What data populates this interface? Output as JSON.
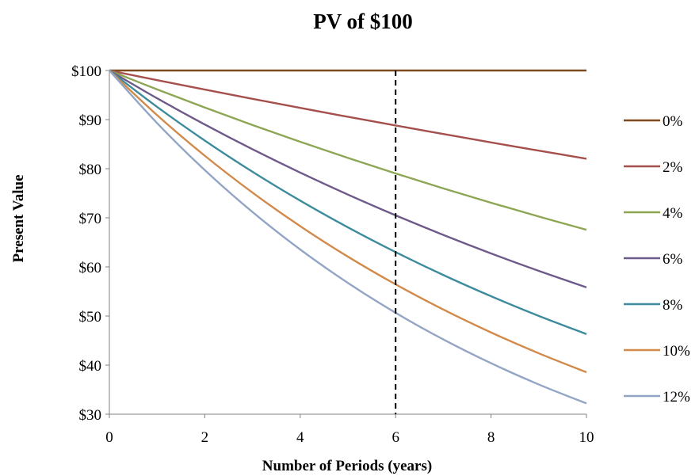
{
  "chart_data": {
    "type": "line",
    "title": "PV of $100",
    "xlabel": "Number of Periods (years)",
    "ylabel": "Present Value",
    "xlim": [
      0,
      10
    ],
    "ylim": [
      30,
      100
    ],
    "x_ticks": [
      0,
      2,
      4,
      6,
      8,
      10
    ],
    "x_tick_labels": [
      "0",
      "2",
      "4",
      "6",
      "8",
      "10"
    ],
    "y_ticks": [
      30,
      40,
      50,
      60,
      70,
      80,
      90,
      100
    ],
    "y_tick_labels": [
      "$30",
      "$40",
      "$50",
      "$60",
      "$70",
      "$80",
      "$90",
      "$100"
    ],
    "x": [
      0,
      1,
      2,
      3,
      4,
      5,
      6,
      7,
      8,
      9,
      10
    ],
    "grid": false,
    "legend_position": "right",
    "reference_line": {
      "orientation": "vertical",
      "x": 6,
      "style": "dashed",
      "color": "#000000"
    },
    "series": [
      {
        "name": "0%",
        "color": "#7f4a1e",
        "values": [
          100,
          100,
          100,
          100,
          100,
          100,
          100,
          100,
          100,
          100,
          100
        ]
      },
      {
        "name": "2%",
        "color": "#a5504d",
        "values": [
          100,
          98.04,
          96.12,
          94.23,
          92.38,
          90.57,
          88.8,
          87.06,
          85.35,
          83.68,
          82.03
        ]
      },
      {
        "name": "4%",
        "color": "#8da653",
        "values": [
          100,
          96.15,
          92.46,
          88.9,
          85.48,
          82.19,
          79.03,
          75.99,
          73.07,
          70.26,
          67.56
        ]
      },
      {
        "name": "6%",
        "color": "#6e5a8a",
        "values": [
          100,
          94.34,
          89,
          83.96,
          79.21,
          74.73,
          70.5,
          66.51,
          62.74,
          59.19,
          55.84
        ]
      },
      {
        "name": "8%",
        "color": "#3d8b9c",
        "values": [
          100,
          92.59,
          85.73,
          79.38,
          73.5,
          68.06,
          63.02,
          58.35,
          54.03,
          50.02,
          46.32
        ]
      },
      {
        "name": "10%",
        "color": "#d18a49",
        "values": [
          100,
          90.91,
          82.64,
          75.13,
          68.3,
          62.09,
          56.45,
          51.32,
          46.65,
          42.41,
          38.55
        ]
      },
      {
        "name": "12%",
        "color": "#93a5c4",
        "values": [
          100,
          89.29,
          79.72,
          71.18,
          63.55,
          56.74,
          50.66,
          45.23,
          40.39,
          36.06,
          32.2
        ]
      }
    ]
  }
}
